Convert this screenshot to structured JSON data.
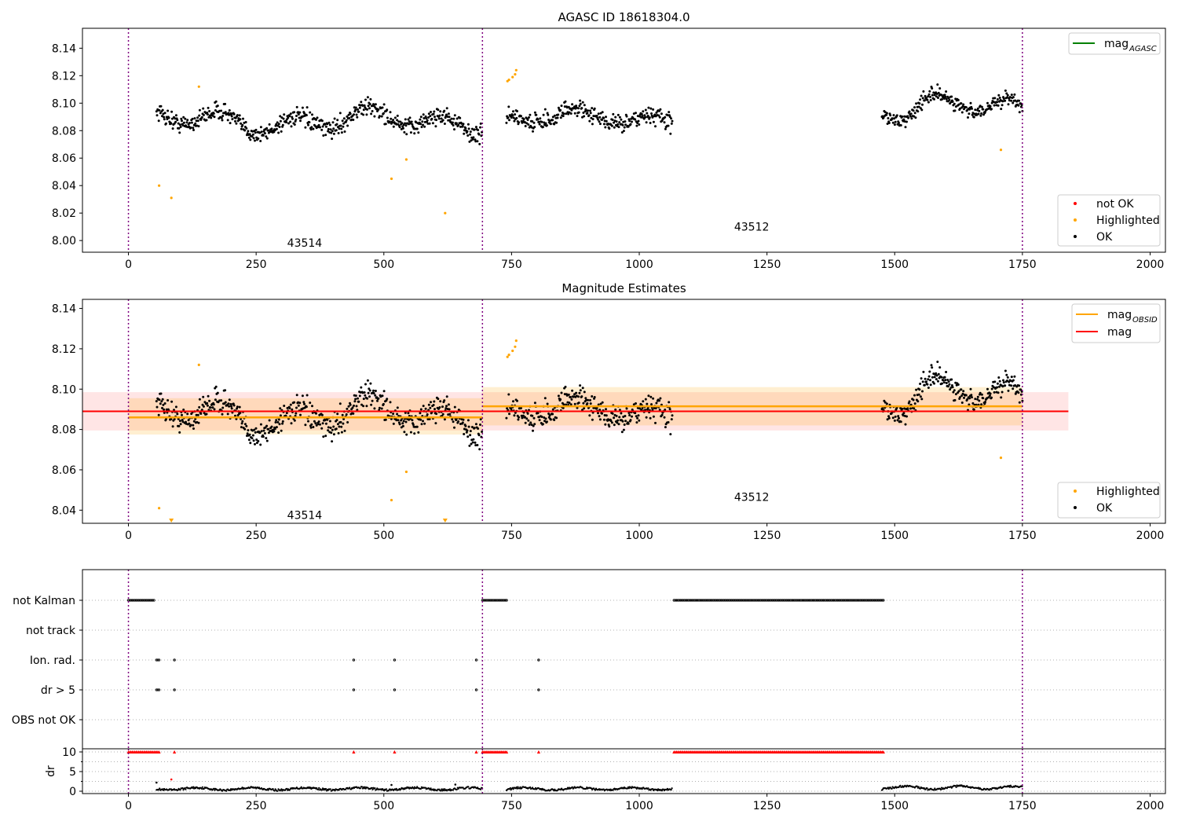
{
  "chart_data": [
    {
      "type": "scatter",
      "title": "AGASC ID 18618304.0",
      "xlabel": "",
      "ylabel": "",
      "xlim": [
        -90,
        2030
      ],
      "ylim": [
        7.9915,
        8.1545
      ],
      "xticks": [
        "0",
        "250",
        "500",
        "750",
        "1000",
        "1250",
        "1500",
        "1750",
        "2000"
      ],
      "yticks": [
        "8.00",
        "8.02",
        "8.04",
        "8.06",
        "8.08",
        "8.10",
        "8.12",
        "8.14"
      ],
      "grid": false,
      "vlines": [
        0,
        693,
        1750
      ],
      "obsid_labels": [
        {
          "text": "43514",
          "x": 345,
          "y": 7.9985
        },
        {
          "text": "43512",
          "x": 1220,
          "y": 8.01
        }
      ],
      "segments": [
        {
          "x_start": 55,
          "x_end": 693,
          "mean": 8.087,
          "amplitude": 0.008,
          "noise": 0.0065
        },
        {
          "x_start": 740,
          "x_end": 1065,
          "mean": 8.089,
          "amplitude": 0.006,
          "noise": 0.007
        },
        {
          "x_start": 1475,
          "x_end": 1750,
          "mean": 8.096,
          "amplitude": 0.009,
          "noise": 0.0055
        }
      ],
      "highlighted_points": [
        {
          "x": 60,
          "y": 8.04
        },
        {
          "x": 84,
          "y": 8.031
        },
        {
          "x": 138,
          "y": 8.112
        },
        {
          "x": 515,
          "y": 8.045
        },
        {
          "x": 544,
          "y": 8.059
        },
        {
          "x": 620,
          "y": 8.02
        },
        {
          "x": 742,
          "y": 8.116
        },
        {
          "x": 745,
          "y": 8.117
        },
        {
          "x": 752,
          "y": 8.119
        },
        {
          "x": 757,
          "y": 8.121
        },
        {
          "x": 759,
          "y": 8.124
        },
        {
          "x": 1708,
          "y": 8.066
        }
      ],
      "legend_lines": [
        {
          "label": "mag",
          "subscript": "AGASC",
          "color": "#008000"
        }
      ],
      "legend_markers": [
        {
          "label": "not OK",
          "color": "#ff0000"
        },
        {
          "label": "Highlighted",
          "color": "#ffa500"
        },
        {
          "label": "OK",
          "color": "#000000"
        }
      ],
      "legend_placement": "upper right / lower right"
    },
    {
      "type": "scatter",
      "title": "Magnitude Estimates",
      "xlabel": "",
      "ylabel": "",
      "xlim": [
        -90,
        2030
      ],
      "ylim": [
        8.0335,
        8.1445
      ],
      "xticks": [
        "0",
        "250",
        "500",
        "750",
        "1000",
        "1250",
        "1500",
        "1750",
        "2000"
      ],
      "yticks": [
        "8.04",
        "8.06",
        "8.08",
        "8.10",
        "8.12",
        "8.14"
      ],
      "grid": false,
      "vlines": [
        0,
        693,
        1750
      ],
      "obsid_labels": [
        {
          "text": "43514",
          "x": 345,
          "y": 8.0375
        },
        {
          "text": "43512",
          "x": 1220,
          "y": 8.0465
        }
      ],
      "mag": {
        "value": 8.089,
        "band_low": 8.0795,
        "band_high": 8.0985,
        "x_start": -90,
        "x_end": 1840,
        "color": "#ff0000"
      },
      "mag_obsid": [
        {
          "x_start": 0,
          "x_end": 693,
          "value": 8.086,
          "band_low": 8.0775,
          "band_high": 8.0955,
          "color": "#ffa500"
        },
        {
          "x_start": 693,
          "x_end": 1750,
          "value": 8.0915,
          "band_low": 8.082,
          "band_high": 8.101,
          "color": "#ffa500"
        }
      ],
      "highlighted_points": [
        {
          "x": 60,
          "y": 8.041
        },
        {
          "x": 138,
          "y": 8.112
        },
        {
          "x": 515,
          "y": 8.045
        },
        {
          "x": 544,
          "y": 8.059
        },
        {
          "x": 742,
          "y": 8.116
        },
        {
          "x": 745,
          "y": 8.117
        },
        {
          "x": 752,
          "y": 8.119
        },
        {
          "x": 757,
          "y": 8.121
        },
        {
          "x": 759,
          "y": 8.124
        },
        {
          "x": 1708,
          "y": 8.066
        }
      ],
      "below_range_markers": [
        {
          "x": 84
        },
        {
          "x": 620
        }
      ],
      "legend_lines": [
        {
          "label": "mag",
          "subscript": "OBSID",
          "color": "#ffa500"
        },
        {
          "label": "mag",
          "subscript": "",
          "color": "#ff0000"
        }
      ],
      "legend_markers": [
        {
          "label": "Highlighted",
          "color": "#ffa500"
        },
        {
          "label": "OK",
          "color": "#000000"
        }
      ],
      "legend_placement": "upper right / lower right"
    },
    {
      "type": "scatter",
      "title": "",
      "xlim": [
        -90,
        2030
      ],
      "xticks": [
        "0",
        "250",
        "500",
        "750",
        "1000",
        "1250",
        "1500",
        "1750",
        "2000"
      ],
      "vlines": [
        0,
        693,
        1750
      ],
      "flag_rows": [
        "not Kalman",
        "not track",
        "Ion. rad.",
        "dr > 5",
        "OBS not OK"
      ],
      "flag_intervals": {
        "not Kalman": [
          [
            0,
            52
          ],
          [
            693,
            742
          ],
          [
            1068,
            1478
          ]
        ],
        "not track": [],
        "Ion. rad.": [
          [
            55,
            60
          ],
          [
            90,
            90
          ],
          [
            441,
            441
          ],
          [
            521,
            521
          ],
          [
            681,
            681
          ],
          [
            803,
            803
          ]
        ],
        "dr > 5": [
          [
            55,
            60
          ],
          [
            90,
            90
          ],
          [
            441,
            441
          ],
          [
            521,
            521
          ],
          [
            681,
            681
          ],
          [
            803,
            803
          ]
        ],
        "OBS not OK": []
      },
      "dr_ylabel": "dr",
      "dr_ylim": [
        -0.6,
        10.8
      ],
      "dr_yticks": [
        "0",
        "5",
        "10"
      ],
      "dr_clipped_intervals": [
        [
          0,
          60
        ],
        [
          90,
          90
        ],
        [
          441,
          441
        ],
        [
          521,
          521
        ],
        [
          681,
          681
        ],
        [
          693,
          742
        ],
        [
          803,
          803
        ],
        [
          1068,
          1478
        ]
      ],
      "dr_extra_points": [
        {
          "x": 84,
          "y": 3.0
        },
        {
          "x": 55,
          "y": 2.2
        },
        {
          "x": 515,
          "y": 1.6
        },
        {
          "x": 640,
          "y": 1.7
        }
      ],
      "dr_segments": [
        {
          "x_start": 55,
          "x_end": 693,
          "mean": 0.6,
          "amplitude": 0.3
        },
        {
          "x_start": 740,
          "x_end": 1065,
          "mean": 0.6,
          "amplitude": 0.3
        },
        {
          "x_start": 1475,
          "x_end": 1750,
          "mean": 0.9,
          "amplitude": 0.4
        }
      ]
    }
  ]
}
